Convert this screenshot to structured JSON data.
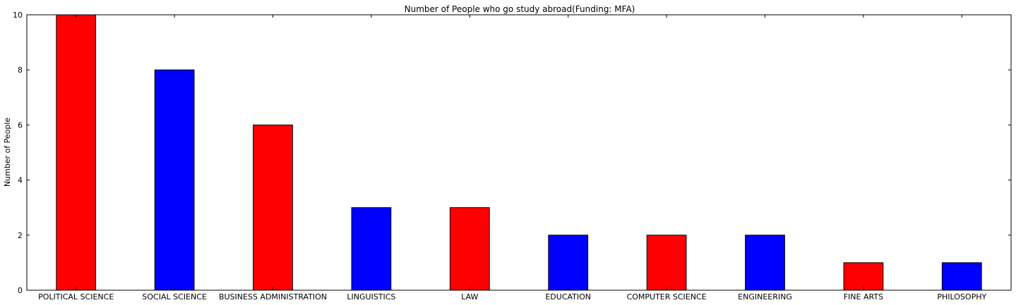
{
  "chart_data": {
    "type": "bar",
    "title": "Number of People who go study abroad(Funding: MFA)",
    "xlabel": "",
    "ylabel": "Number of People",
    "ylim": [
      0,
      10
    ],
    "yticks": [
      0,
      2,
      4,
      6,
      8,
      10
    ],
    "grid": false,
    "categories": [
      "POLITICAL SCIENCE",
      "SOCIAL SCIENCE",
      "BUSINESS ADMINISTRATION",
      "LINGUISTICS",
      "LAW",
      "EDUCATION",
      "COMPUTER SCIENCE",
      "ENGINEERING",
      "FINE ARTS",
      "PHILOSOPHY"
    ],
    "values": [
      10,
      8,
      6,
      3,
      3,
      2,
      2,
      2,
      1,
      1
    ],
    "colors": [
      "#ff0000",
      "#0000ff",
      "#ff0000",
      "#0000ff",
      "#ff0000",
      "#0000ff",
      "#ff0000",
      "#0000ff",
      "#ff0000",
      "#0000ff"
    ]
  }
}
